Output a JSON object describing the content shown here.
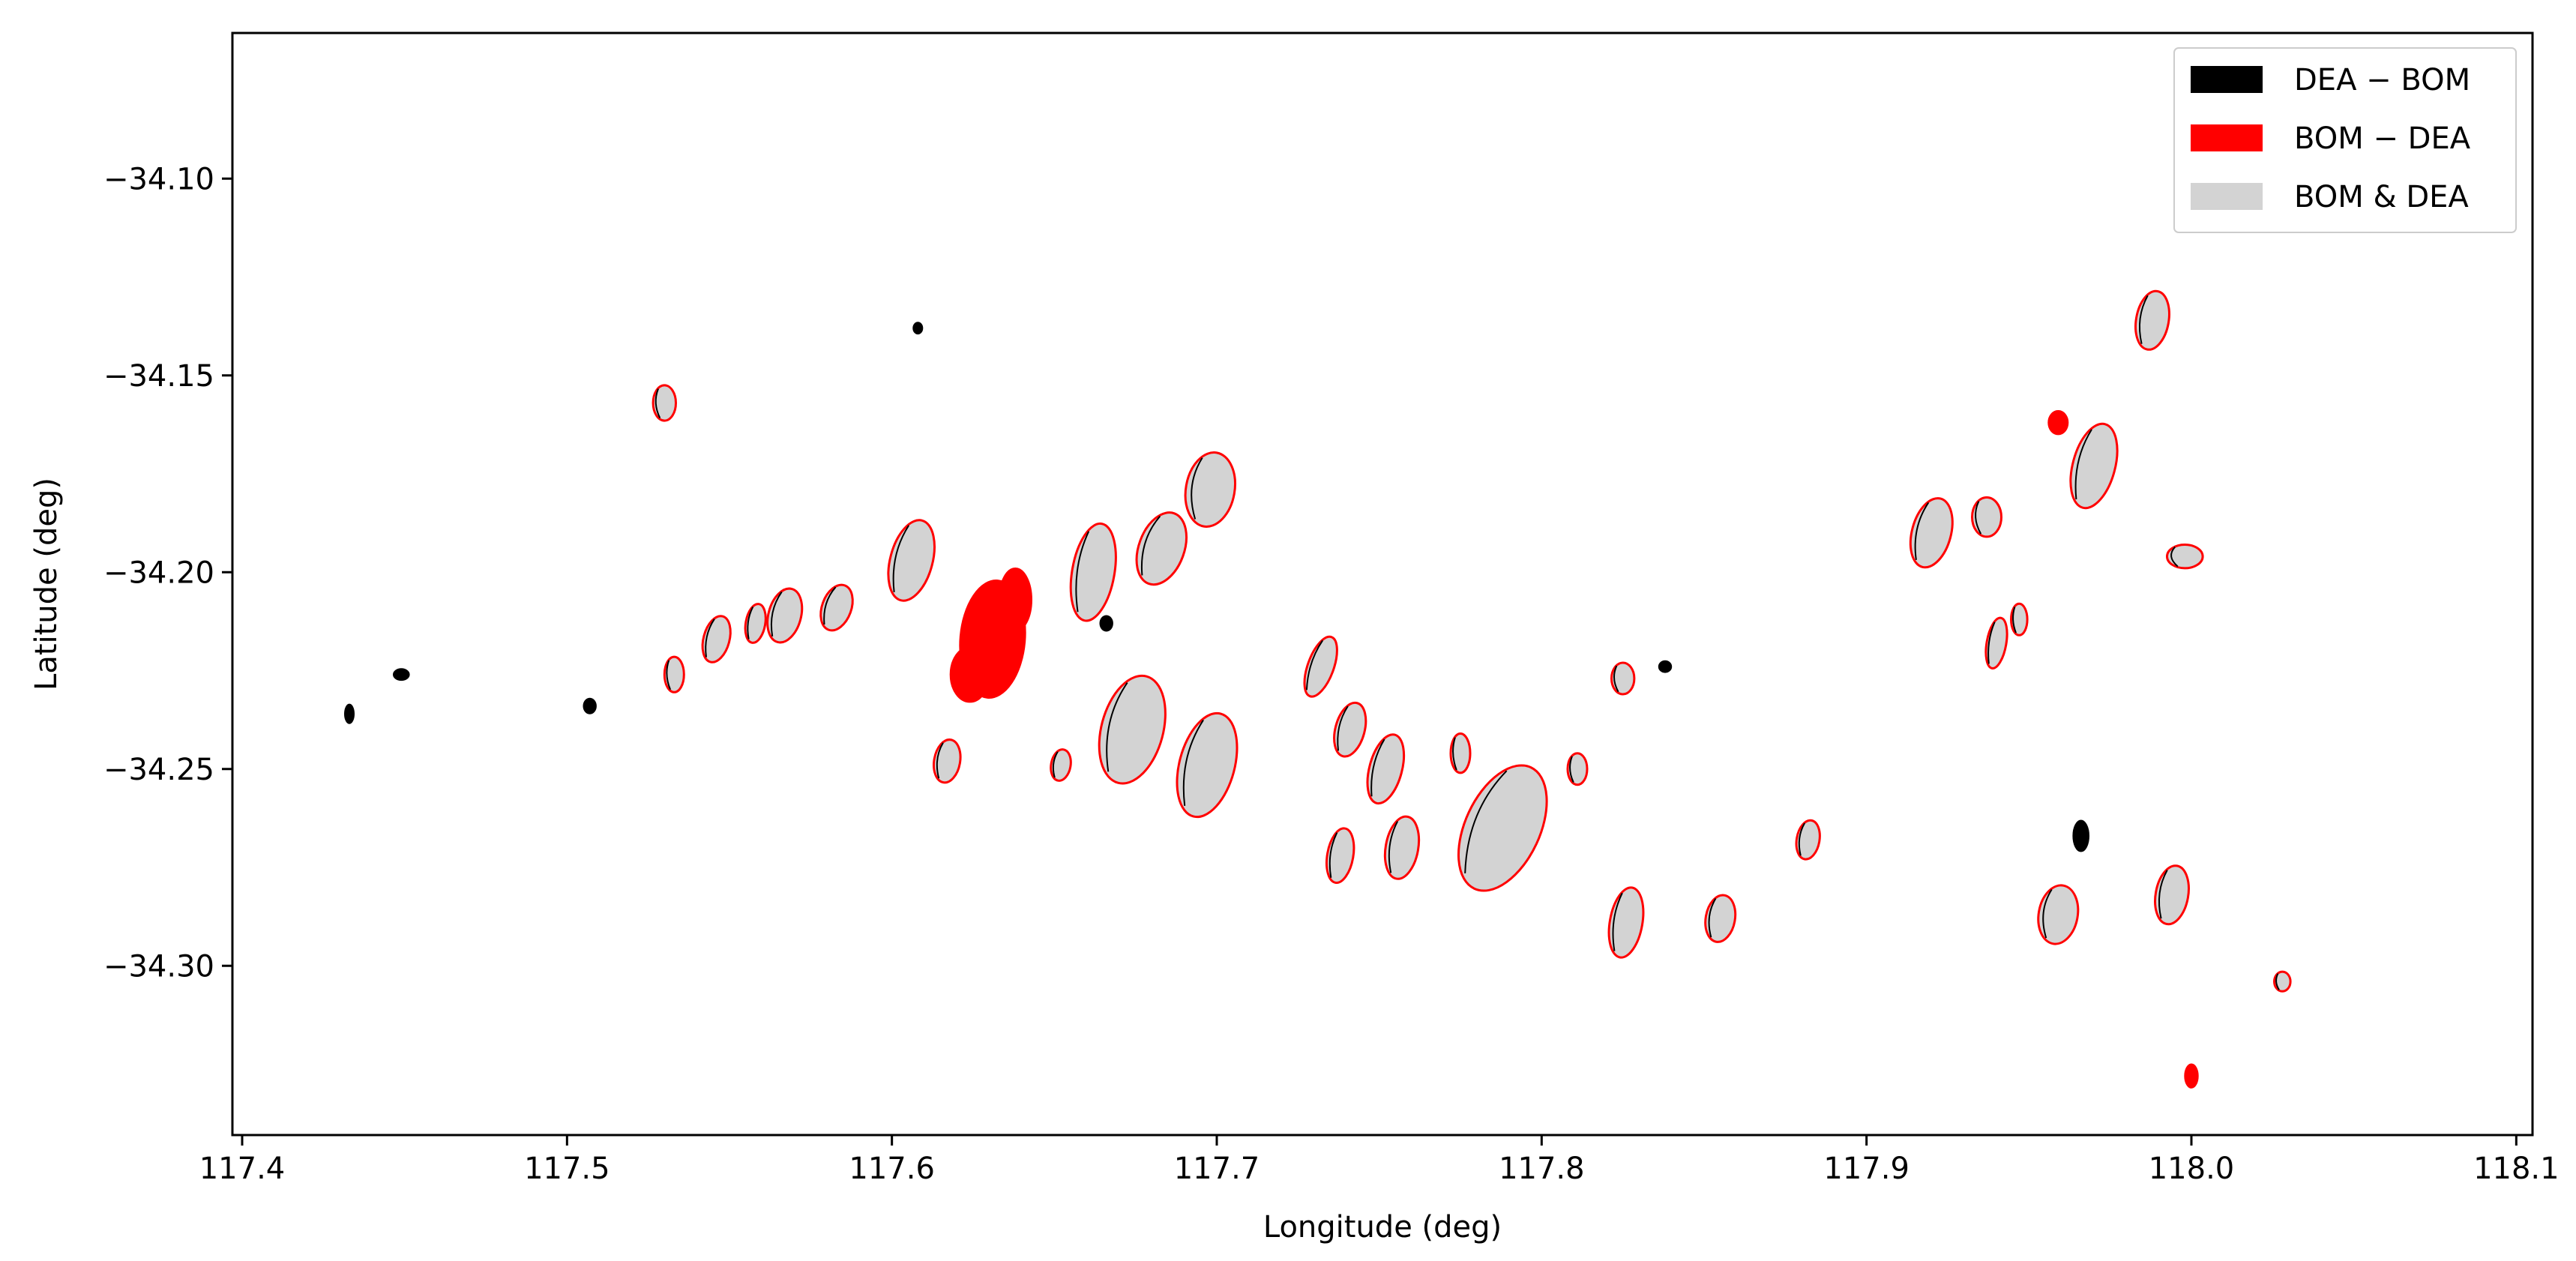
{
  "chart_data": {
    "type": "scatter",
    "title": "",
    "xlabel": "Longitude (deg)",
    "ylabel": "Latitude (deg)",
    "xlim": [
      117.397,
      118.105
    ],
    "ylim": [
      -34.343,
      -34.063
    ],
    "x_ticks": [
      {
        "value": 117.4,
        "label": "117.4"
      },
      {
        "value": 117.5,
        "label": "117.5"
      },
      {
        "value": 117.6,
        "label": "117.6"
      },
      {
        "value": 117.7,
        "label": "117.7"
      },
      {
        "value": 117.8,
        "label": "117.8"
      },
      {
        "value": 117.9,
        "label": "117.9"
      },
      {
        "value": 118.0,
        "label": "118.0"
      },
      {
        "value": 118.1,
        "label": "118.1"
      }
    ],
    "y_ticks": [
      {
        "value": -34.1,
        "label": "−34.10"
      },
      {
        "value": -34.15,
        "label": "−34.15"
      },
      {
        "value": -34.2,
        "label": "−34.20"
      },
      {
        "value": -34.25,
        "label": "−34.25"
      },
      {
        "value": -34.3,
        "label": "−34.30"
      }
    ],
    "grid": false,
    "legend": {
      "position": "top-right",
      "entries": [
        {
          "label": "DEA − BOM",
          "color": "#000000"
        },
        {
          "label": "BOM − DEA",
          "color": "#ff0000"
        },
        {
          "label": "BOM & DEA",
          "color": "#d3d3d3"
        }
      ]
    },
    "colors": {
      "dea_minus_bom": "#000000",
      "bom_minus_dea": "#ff0000",
      "bom_and_dea": "#d3d3d3",
      "axes": "#000000",
      "background": "#ffffff"
    },
    "regions": [
      {
        "lon": 117.53,
        "lat": -34.157,
        "dlon": 0.0035,
        "dlat": 0.0045,
        "rot": 0,
        "kind": "both"
      },
      {
        "lon": 117.533,
        "lat": -34.226,
        "dlon": 0.003,
        "dlat": 0.0045,
        "rot": 0,
        "kind": "both"
      },
      {
        "lon": 117.546,
        "lat": -34.217,
        "dlon": 0.004,
        "dlat": 0.006,
        "rot": 15,
        "kind": "both"
      },
      {
        "lon": 117.558,
        "lat": -34.213,
        "dlon": 0.003,
        "dlat": 0.005,
        "rot": 10,
        "kind": "both"
      },
      {
        "lon": 117.567,
        "lat": -34.211,
        "dlon": 0.005,
        "dlat": 0.007,
        "rot": 15,
        "kind": "both"
      },
      {
        "lon": 117.583,
        "lat": -34.209,
        "dlon": 0.0045,
        "dlat": 0.006,
        "rot": 20,
        "kind": "both"
      },
      {
        "lon": 117.606,
        "lat": -34.197,
        "dlon": 0.0065,
        "dlat": 0.0105,
        "rot": 15,
        "kind": "both"
      },
      {
        "lon": 117.631,
        "lat": -34.217,
        "dlon": 0.01,
        "dlat": 0.015,
        "rot": 5,
        "kind": "bom_minus_dea"
      },
      {
        "lon": 117.638,
        "lat": -34.207,
        "dlon": 0.005,
        "dlat": 0.008,
        "rot": 0,
        "kind": "bom_minus_dea"
      },
      {
        "lon": 117.624,
        "lat": -34.226,
        "dlon": 0.006,
        "dlat": 0.007,
        "rot": 0,
        "kind": "bom_minus_dea"
      },
      {
        "lon": 117.662,
        "lat": -34.2,
        "dlon": 0.0065,
        "dlat": 0.0125,
        "rot": 10,
        "kind": "both"
      },
      {
        "lon": 117.683,
        "lat": -34.194,
        "dlon": 0.007,
        "dlat": 0.0095,
        "rot": 20,
        "kind": "both"
      },
      {
        "lon": 117.698,
        "lat": -34.179,
        "dlon": 0.0075,
        "dlat": 0.0095,
        "rot": 10,
        "kind": "both"
      },
      {
        "lon": 117.674,
        "lat": -34.24,
        "dlon": 0.0095,
        "dlat": 0.014,
        "rot": 15,
        "kind": "both"
      },
      {
        "lon": 117.697,
        "lat": -34.249,
        "dlon": 0.0085,
        "dlat": 0.0135,
        "rot": 15,
        "kind": "both"
      },
      {
        "lon": 117.617,
        "lat": -34.248,
        "dlon": 0.004,
        "dlat": 0.0055,
        "rot": 10,
        "kind": "both"
      },
      {
        "lon": 117.652,
        "lat": -34.249,
        "dlon": 0.003,
        "dlat": 0.004,
        "rot": 10,
        "kind": "both"
      },
      {
        "lon": 117.732,
        "lat": -34.224,
        "dlon": 0.004,
        "dlat": 0.008,
        "rot": 20,
        "kind": "both"
      },
      {
        "lon": 117.741,
        "lat": -34.24,
        "dlon": 0.0045,
        "dlat": 0.007,
        "rot": 15,
        "kind": "both"
      },
      {
        "lon": 117.752,
        "lat": -34.25,
        "dlon": 0.005,
        "dlat": 0.009,
        "rot": 15,
        "kind": "both"
      },
      {
        "lon": 117.738,
        "lat": -34.272,
        "dlon": 0.004,
        "dlat": 0.007,
        "rot": 10,
        "kind": "both"
      },
      {
        "lon": 117.757,
        "lat": -34.27,
        "dlon": 0.005,
        "dlat": 0.008,
        "rot": 10,
        "kind": "both"
      },
      {
        "lon": 117.788,
        "lat": -34.265,
        "dlon": 0.0115,
        "dlat": 0.017,
        "rot": 25,
        "kind": "both"
      },
      {
        "lon": 117.775,
        "lat": -34.246,
        "dlon": 0.003,
        "dlat": 0.005,
        "rot": 0,
        "kind": "both"
      },
      {
        "lon": 117.826,
        "lat": -34.289,
        "dlon": 0.005,
        "dlat": 0.009,
        "rot": 10,
        "kind": "both"
      },
      {
        "lon": 117.811,
        "lat": -34.25,
        "dlon": 0.003,
        "dlat": 0.004,
        "rot": 0,
        "kind": "both"
      },
      {
        "lon": 117.825,
        "lat": -34.227,
        "dlon": 0.0035,
        "dlat": 0.004,
        "rot": 0,
        "kind": "both"
      },
      {
        "lon": 117.855,
        "lat": -34.288,
        "dlon": 0.0045,
        "dlat": 0.006,
        "rot": 10,
        "kind": "both"
      },
      {
        "lon": 117.882,
        "lat": -34.268,
        "dlon": 0.0035,
        "dlat": 0.005,
        "rot": 10,
        "kind": "both"
      },
      {
        "lon": 117.92,
        "lat": -34.19,
        "dlon": 0.006,
        "dlat": 0.009,
        "rot": 15,
        "kind": "both"
      },
      {
        "lon": 117.937,
        "lat": -34.186,
        "dlon": 0.0045,
        "dlat": 0.005,
        "rot": 0,
        "kind": "both"
      },
      {
        "lon": 117.97,
        "lat": -34.173,
        "dlon": 0.0065,
        "dlat": 0.011,
        "rot": 15,
        "kind": "both"
      },
      {
        "lon": 117.988,
        "lat": -34.136,
        "dlon": 0.005,
        "dlat": 0.0075,
        "rot": 10,
        "kind": "both"
      },
      {
        "lon": 117.998,
        "lat": -34.196,
        "dlon": 0.0055,
        "dlat": 0.003,
        "rot": 0,
        "kind": "both"
      },
      {
        "lon": 117.94,
        "lat": -34.218,
        "dlon": 0.003,
        "dlat": 0.0065,
        "rot": 10,
        "kind": "both"
      },
      {
        "lon": 117.947,
        "lat": -34.212,
        "dlon": 0.0025,
        "dlat": 0.004,
        "rot": 0,
        "kind": "both"
      },
      {
        "lon": 117.959,
        "lat": -34.287,
        "dlon": 0.006,
        "dlat": 0.0075,
        "rot": 10,
        "kind": "both"
      },
      {
        "lon": 117.994,
        "lat": -34.282,
        "dlon": 0.005,
        "dlat": 0.0075,
        "rot": 10,
        "kind": "both"
      },
      {
        "lon": 117.959,
        "lat": -34.162,
        "dlon": 0.003,
        "dlat": 0.003,
        "rot": 0,
        "kind": "bom_minus_dea"
      },
      {
        "lon": 118.0,
        "lat": -34.328,
        "dlon": 0.002,
        "dlat": 0.003,
        "rot": 0,
        "kind": "bom_minus_dea"
      },
      {
        "lon": 118.028,
        "lat": -34.304,
        "dlon": 0.0025,
        "dlat": 0.0025,
        "rot": 0,
        "kind": "both"
      },
      {
        "lon": 117.433,
        "lat": -34.236,
        "dlon": 0.0015,
        "dlat": 0.0025,
        "rot": 0,
        "kind": "dea_minus_bom"
      },
      {
        "lon": 117.449,
        "lat": -34.226,
        "dlon": 0.0025,
        "dlat": 0.0015,
        "rot": 0,
        "kind": "dea_minus_bom"
      },
      {
        "lon": 117.507,
        "lat": -34.234,
        "dlon": 0.002,
        "dlat": 0.002,
        "rot": 0,
        "kind": "dea_minus_bom"
      },
      {
        "lon": 117.608,
        "lat": -34.138,
        "dlon": 0.0015,
        "dlat": 0.0015,
        "rot": 0,
        "kind": "dea_minus_bom"
      },
      {
        "lon": 117.666,
        "lat": -34.213,
        "dlon": 0.002,
        "dlat": 0.002,
        "rot": 0,
        "kind": "dea_minus_bom"
      },
      {
        "lon": 117.966,
        "lat": -34.267,
        "dlon": 0.0025,
        "dlat": 0.004,
        "rot": 0,
        "kind": "dea_minus_bom"
      },
      {
        "lon": 117.838,
        "lat": -34.224,
        "dlon": 0.002,
        "dlat": 0.0015,
        "rot": 0,
        "kind": "dea_minus_bom"
      }
    ]
  }
}
